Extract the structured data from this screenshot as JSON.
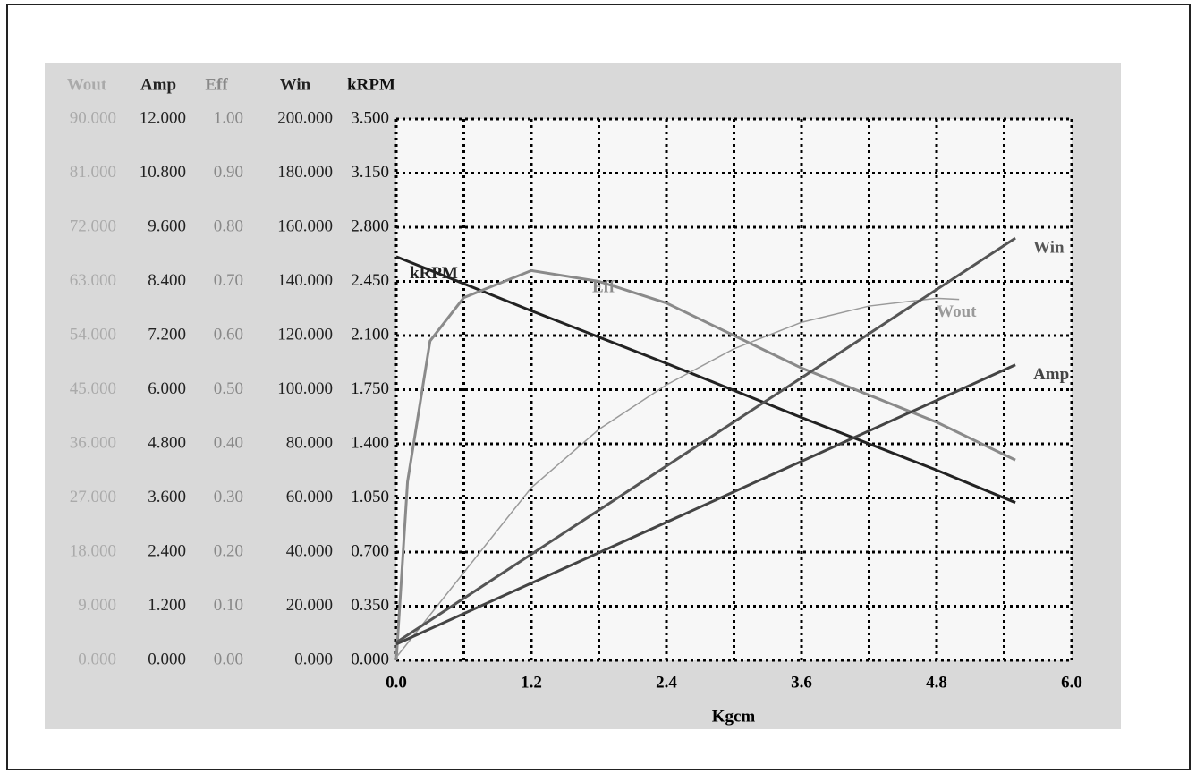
{
  "chart_data": {
    "type": "line",
    "xlabel": "Kgcm",
    "xlim": [
      0,
      6
    ],
    "xticks": [
      {
        "value": 0,
        "label": "0.0"
      },
      {
        "value": 1.2,
        "label": "1.2"
      },
      {
        "value": 2.4,
        "label": "2.4"
      },
      {
        "value": 3.6,
        "label": "3.6"
      },
      {
        "value": 4.8,
        "label": "4.8"
      },
      {
        "value": 6,
        "label": "6.0"
      }
    ],
    "grid": true,
    "axes": [
      {
        "name": "Wout",
        "color": "#aaaaaa",
        "ylim": [
          0,
          90
        ],
        "yticks": [
          {
            "value": 0,
            "label": "0.000"
          },
          {
            "value": 9,
            "label": "9.000"
          },
          {
            "value": 18,
            "label": "18.000"
          },
          {
            "value": 27,
            "label": "27.000"
          },
          {
            "value": 36,
            "label": "36.000"
          },
          {
            "value": 45,
            "label": "45.000"
          },
          {
            "value": 54,
            "label": "54.000"
          },
          {
            "value": 63,
            "label": "63.000"
          },
          {
            "value": 72,
            "label": "72.000"
          },
          {
            "value": 81,
            "label": "81.000"
          },
          {
            "value": 90,
            "label": "90.000"
          }
        ]
      },
      {
        "name": "Amp",
        "color": "#222222",
        "ylim": [
          0,
          12
        ],
        "yticks": [
          {
            "value": 0,
            "label": "0.000"
          },
          {
            "value": 1.2,
            "label": "1.200"
          },
          {
            "value": 2.4,
            "label": "2.400"
          },
          {
            "value": 3.6,
            "label": "3.600"
          },
          {
            "value": 4.8,
            "label": "4.800"
          },
          {
            "value": 6,
            "label": "6.000"
          },
          {
            "value": 7.2,
            "label": "7.200"
          },
          {
            "value": 8.4,
            "label": "8.400"
          },
          {
            "value": 9.6,
            "label": "9.600"
          },
          {
            "value": 10.8,
            "label": "10.800"
          },
          {
            "value": 12,
            "label": "12.000"
          }
        ]
      },
      {
        "name": "Eff",
        "color": "#888888",
        "ylim": [
          0,
          1
        ],
        "yticks": [
          {
            "value": 0,
            "label": "0.00"
          },
          {
            "value": 0.1,
            "label": "0.10"
          },
          {
            "value": 0.2,
            "label": "0.20"
          },
          {
            "value": 0.3,
            "label": "0.30"
          },
          {
            "value": 0.4,
            "label": "0.40"
          },
          {
            "value": 0.5,
            "label": "0.50"
          },
          {
            "value": 0.6,
            "label": "0.60"
          },
          {
            "value": 0.7,
            "label": "0.70"
          },
          {
            "value": 0.8,
            "label": "0.80"
          },
          {
            "value": 0.9,
            "label": "0.90"
          },
          {
            "value": 1,
            "label": "1.00"
          }
        ]
      },
      {
        "name": "Win",
        "color": "#222222",
        "ylim": [
          0,
          200
        ],
        "yticks": [
          {
            "value": 0,
            "label": "0.000"
          },
          {
            "value": 20,
            "label": "20.000"
          },
          {
            "value": 40,
            "label": "40.000"
          },
          {
            "value": 60,
            "label": "60.000"
          },
          {
            "value": 80,
            "label": "80.000"
          },
          {
            "value": 100,
            "label": "100.000"
          },
          {
            "value": 120,
            "label": "120.000"
          },
          {
            "value": 140,
            "label": "140.000"
          },
          {
            "value": 160,
            "label": "160.000"
          },
          {
            "value": 180,
            "label": "180.000"
          },
          {
            "value": 200,
            "label": "200.000"
          }
        ]
      },
      {
        "name": "kRPM",
        "color": "#111111",
        "ylim": [
          0,
          3.5
        ],
        "yticks": [
          {
            "value": 0,
            "label": "0.000"
          },
          {
            "value": 0.35,
            "label": "0.350"
          },
          {
            "value": 0.7,
            "label": "0.700"
          },
          {
            "value": 1.05,
            "label": "1.050"
          },
          {
            "value": 1.4,
            "label": "1.400"
          },
          {
            "value": 1.75,
            "label": "1.750"
          },
          {
            "value": 2.1,
            "label": "2.100"
          },
          {
            "value": 2.45,
            "label": "2.450"
          },
          {
            "value": 2.8,
            "label": "2.800"
          },
          {
            "value": 3.15,
            "label": "3.150"
          },
          {
            "value": 3.5,
            "label": "3.500"
          }
        ]
      }
    ],
    "series": [
      {
        "name": "kRPM",
        "axis": 4,
        "color": "#222222",
        "x": [
          0,
          1.2,
          2.4,
          3.6,
          4.8,
          5.5
        ],
        "values": [
          2.61,
          2.26,
          1.92,
          1.57,
          1.23,
          1.02
        ]
      },
      {
        "name": "Eff",
        "axis": 2,
        "color": "#8a8a8a",
        "x": [
          0,
          0.1,
          0.3,
          0.6,
          1.2,
          1.8,
          2.4,
          3.0,
          3.6,
          4.2,
          4.8,
          5.5
        ],
        "values": [
          0,
          0.33,
          0.59,
          0.67,
          0.72,
          0.7,
          0.66,
          0.6,
          0.54,
          0.49,
          0.44,
          0.37
        ]
      },
      {
        "name": "Wout",
        "axis": 0,
        "color": "#9a9a9a",
        "x": [
          0,
          0.6,
          1.2,
          1.8,
          2.4,
          3.0,
          3.6,
          4.2,
          4.8,
          5.0
        ],
        "values": [
          0.5,
          14.6,
          28.7,
          38.4,
          45.8,
          51.8,
          56.2,
          58.9,
          60.2,
          60
        ]
      },
      {
        "name": "Win",
        "axis": 3,
        "color": "#555555",
        "x": [
          0,
          5.5
        ],
        "values": [
          6.6,
          156
        ]
      },
      {
        "name": "Amp",
        "axis": 1,
        "color": "#444444",
        "x": [
          0,
          5.5
        ],
        "values": [
          0.36,
          6.55
        ]
      }
    ]
  }
}
